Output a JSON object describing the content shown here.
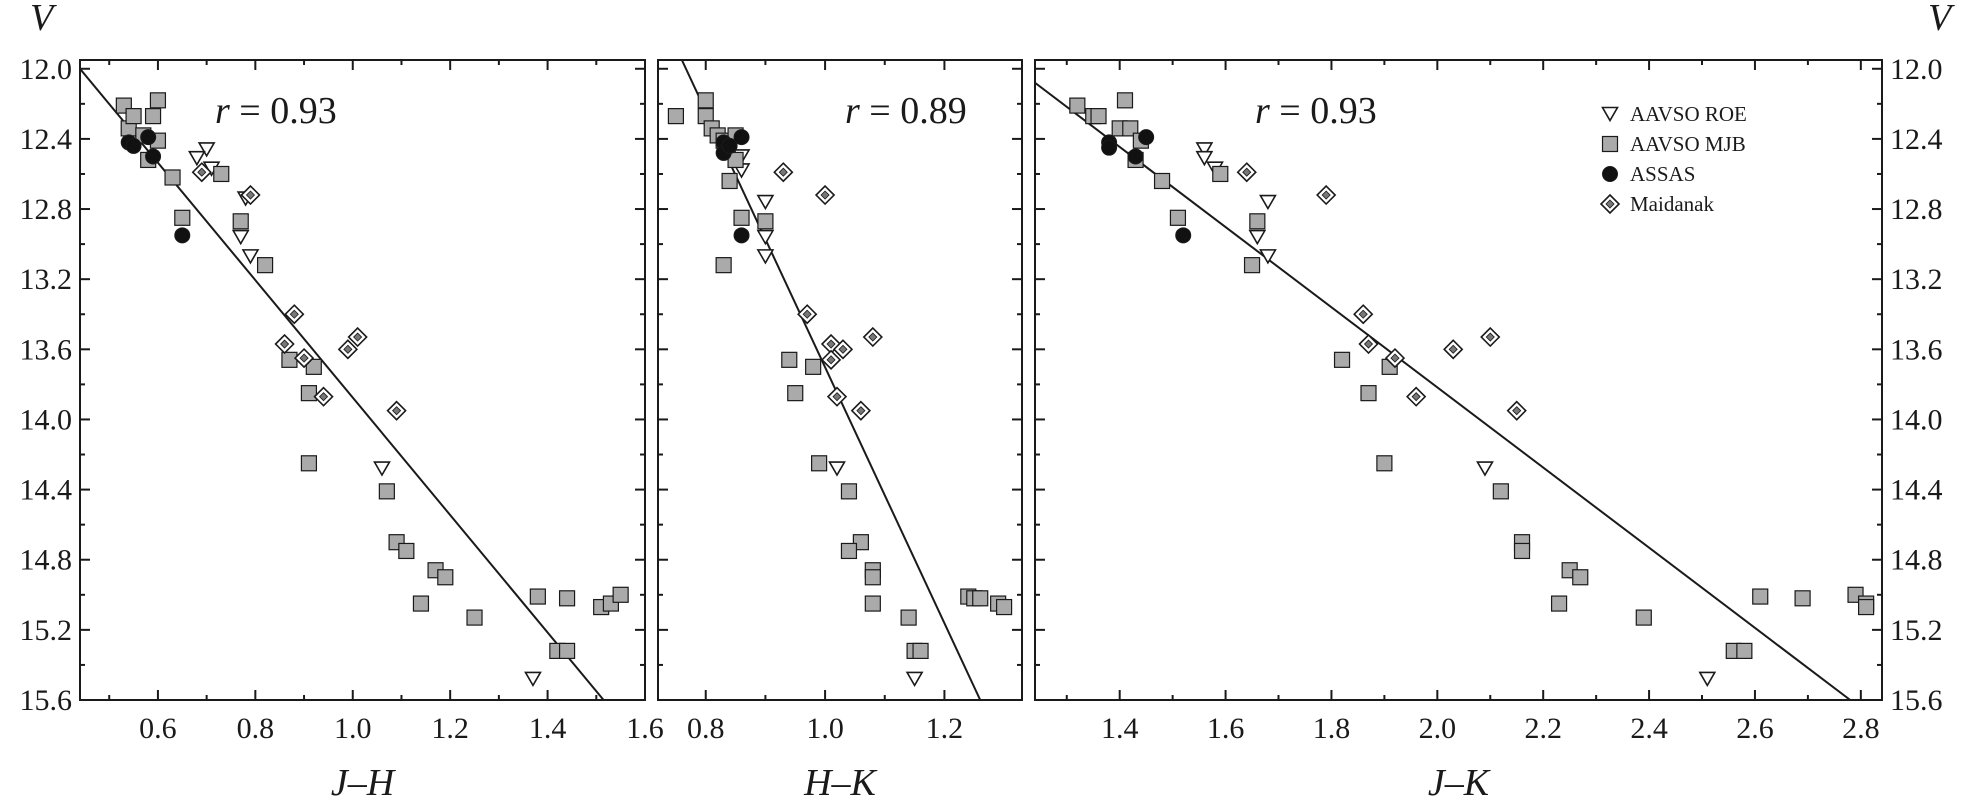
{
  "chart_data": [
    {
      "type": "scatter",
      "panel": "left",
      "xlabel": "J–H",
      "ylabel": "V",
      "xlim": [
        0.44,
        1.6
      ],
      "ylim": [
        15.6,
        11.95
      ],
      "xticks": [
        0.6,
        0.8,
        1.0,
        1.2,
        1.4,
        1.6
      ],
      "xtick_labels": [
        "0.6",
        "0.8",
        "1.0",
        "1.2",
        "1.4",
        "1.6"
      ],
      "yticks": [
        12.0,
        12.4,
        12.8,
        13.2,
        13.6,
        14.0,
        14.4,
        14.8,
        15.2,
        15.6
      ],
      "ytick_labels": [
        "12.0",
        "12.4",
        "12.8",
        "13.2",
        "13.6",
        "14.0",
        "14.4",
        "14.8",
        "15.2",
        "15.6"
      ],
      "annotation": {
        "var": "r",
        "eq": " = ",
        "val": "0.93"
      },
      "fit_line": [
        [
          0.44,
          12.0
        ],
        [
          1.515,
          15.6
        ]
      ],
      "series": [
        {
          "name": "AAVSO ROE",
          "marker": "triangle-down",
          "points": [
            [
              0.7,
              12.46
            ],
            [
              0.68,
              12.51
            ],
            [
              0.71,
              12.57
            ],
            [
              0.77,
              12.96
            ],
            [
              0.79,
              13.07
            ],
            [
              0.78,
              12.74
            ],
            [
              1.06,
              14.28
            ],
            [
              1.37,
              15.48
            ]
          ]
        },
        {
          "name": "AAVSO MJB",
          "marker": "square",
          "points": [
            [
              0.53,
              12.21
            ],
            [
              0.54,
              12.34
            ],
            [
              0.55,
              12.27
            ],
            [
              0.57,
              12.38
            ],
            [
              0.59,
              12.27
            ],
            [
              0.6,
              12.18
            ],
            [
              0.6,
              12.41
            ],
            [
              0.58,
              12.52
            ],
            [
              0.63,
              12.62
            ],
            [
              0.65,
              12.85
            ],
            [
              0.73,
              12.6
            ],
            [
              0.77,
              12.87
            ],
            [
              0.82,
              13.12
            ],
            [
              0.87,
              13.66
            ],
            [
              0.92,
              13.7
            ],
            [
              0.91,
              13.85
            ],
            [
              0.91,
              14.25
            ],
            [
              1.07,
              14.41
            ],
            [
              1.09,
              14.7
            ],
            [
              1.11,
              14.75
            ],
            [
              1.17,
              14.86
            ],
            [
              1.19,
              14.9
            ],
            [
              1.14,
              15.05
            ],
            [
              1.25,
              15.13
            ],
            [
              1.38,
              15.01
            ],
            [
              1.44,
              15.02
            ],
            [
              1.51,
              15.07
            ],
            [
              1.53,
              15.05
            ],
            [
              1.55,
              15.0
            ],
            [
              1.42,
              15.32
            ],
            [
              1.44,
              15.32
            ]
          ]
        },
        {
          "name": "ASSAS",
          "marker": "circle",
          "points": [
            [
              0.54,
              12.42
            ],
            [
              0.55,
              12.44
            ],
            [
              0.58,
              12.39
            ],
            [
              0.59,
              12.5
            ],
            [
              0.65,
              12.95
            ]
          ]
        },
        {
          "name": "Maidanak",
          "marker": "diamond",
          "points": [
            [
              0.69,
              12.59
            ],
            [
              0.79,
              12.72
            ],
            [
              0.86,
              13.57
            ],
            [
              0.88,
              13.4
            ],
            [
              0.9,
              13.65
            ],
            [
              0.94,
              13.87
            ],
            [
              0.99,
              13.6
            ],
            [
              1.01,
              13.53
            ],
            [
              1.09,
              13.95
            ]
          ]
        }
      ]
    },
    {
      "type": "scatter",
      "panel": "middle",
      "xlabel": "H–K",
      "ylabel": "V",
      "xlim": [
        0.72,
        1.33
      ],
      "ylim": [
        15.6,
        11.95
      ],
      "xticks": [
        0.8,
        1.0,
        1.2
      ],
      "xtick_labels": [
        "0.8",
        "1.0",
        "1.2"
      ],
      "yticks": [
        12.0,
        12.4,
        12.8,
        13.2,
        13.6,
        14.0,
        14.4,
        14.8,
        15.2,
        15.6
      ],
      "annotation": {
        "var": "r",
        "eq": " = ",
        "val": "0.89"
      },
      "fit_line": [
        [
          0.76,
          11.95
        ],
        [
          1.26,
          15.6
        ]
      ],
      "series": [
        {
          "name": "AAVSO ROE",
          "marker": "triangle-down",
          "points": [
            [
              0.86,
              12.5
            ],
            [
              0.86,
              12.58
            ],
            [
              0.9,
              12.76
            ],
            [
              0.9,
              12.96
            ],
            [
              0.9,
              13.07
            ],
            [
              1.02,
              14.28
            ],
            [
              1.15,
              15.48
            ]
          ]
        },
        {
          "name": "AAVSO MJB",
          "marker": "square",
          "points": [
            [
              0.75,
              12.27
            ],
            [
              0.8,
              12.18
            ],
            [
              0.8,
              12.27
            ],
            [
              0.81,
              12.34
            ],
            [
              0.82,
              12.38
            ],
            [
              0.83,
              12.41
            ],
            [
              0.85,
              12.38
            ],
            [
              0.85,
              12.52
            ],
            [
              0.84,
              12.64
            ],
            [
              0.86,
              12.85
            ],
            [
              0.9,
              12.87
            ],
            [
              0.83,
              13.12
            ],
            [
              0.94,
              13.66
            ],
            [
              0.98,
              13.7
            ],
            [
              0.95,
              13.85
            ],
            [
              0.99,
              14.25
            ],
            [
              1.04,
              14.41
            ],
            [
              1.06,
              14.7
            ],
            [
              1.04,
              14.75
            ],
            [
              1.08,
              14.86
            ],
            [
              1.08,
              14.9
            ],
            [
              1.08,
              15.05
            ],
            [
              1.14,
              15.13
            ],
            [
              1.24,
              15.01
            ],
            [
              1.25,
              15.02
            ],
            [
              1.26,
              15.02
            ],
            [
              1.29,
              15.05
            ],
            [
              1.3,
              15.07
            ],
            [
              1.15,
              15.32
            ],
            [
              1.16,
              15.32
            ]
          ]
        },
        {
          "name": "ASSAS",
          "marker": "circle",
          "points": [
            [
              0.83,
              12.42
            ],
            [
              0.83,
              12.48
            ],
            [
              0.84,
              12.44
            ],
            [
              0.86,
              12.39
            ],
            [
              0.86,
              12.95
            ]
          ]
        },
        {
          "name": "Maidanak",
          "marker": "diamond",
          "points": [
            [
              0.93,
              12.59
            ],
            [
              1.0,
              12.72
            ],
            [
              0.97,
              13.4
            ],
            [
              1.01,
              13.57
            ],
            [
              1.03,
              13.6
            ],
            [
              1.01,
              13.66
            ],
            [
              1.02,
              13.87
            ],
            [
              1.06,
              13.95
            ],
            [
              1.08,
              13.53
            ]
          ]
        }
      ]
    },
    {
      "type": "scatter",
      "panel": "right",
      "xlabel": "J–K",
      "ylabel": "V",
      "xlim": [
        1.24,
        2.84
      ],
      "ylim": [
        15.6,
        11.95
      ],
      "xticks": [
        1.4,
        1.6,
        1.8,
        2.0,
        2.2,
        2.4,
        2.6,
        2.8
      ],
      "xtick_labels": [
        "1.4",
        "1.6",
        "1.8",
        "2.0",
        "2.2",
        "2.4",
        "2.6",
        "2.8"
      ],
      "yticks": [
        12.0,
        12.4,
        12.8,
        13.2,
        13.6,
        14.0,
        14.4,
        14.8,
        15.2,
        15.6
      ],
      "ytick_labels": [
        "12.0",
        "12.4",
        "12.8",
        "13.2",
        "13.6",
        "14.0",
        "14.4",
        "14.8",
        "15.2",
        "15.6"
      ],
      "annotation": {
        "var": "r",
        "eq": " = ",
        "val": "0.93"
      },
      "fit_line": [
        [
          1.24,
          12.08
        ],
        [
          2.78,
          15.6
        ]
      ],
      "series": [
        {
          "name": "AAVSO ROE",
          "marker": "triangle-down",
          "points": [
            [
              1.56,
              12.46
            ],
            [
              1.56,
              12.51
            ],
            [
              1.58,
              12.57
            ],
            [
              1.68,
              12.76
            ],
            [
              1.66,
              12.96
            ],
            [
              1.68,
              13.07
            ],
            [
              2.09,
              14.28
            ],
            [
              2.51,
              15.48
            ]
          ]
        },
        {
          "name": "AAVSO MJB",
          "marker": "square",
          "points": [
            [
              1.32,
              12.21
            ],
            [
              1.35,
              12.27
            ],
            [
              1.36,
              12.27
            ],
            [
              1.41,
              12.18
            ],
            [
              1.4,
              12.34
            ],
            [
              1.42,
              12.34
            ],
            [
              1.44,
              12.41
            ],
            [
              1.43,
              12.52
            ],
            [
              1.48,
              12.64
            ],
            [
              1.51,
              12.85
            ],
            [
              1.59,
              12.6
            ],
            [
              1.66,
              12.87
            ],
            [
              1.65,
              13.12
            ],
            [
              1.82,
              13.66
            ],
            [
              1.91,
              13.7
            ],
            [
              1.87,
              13.85
            ],
            [
              1.9,
              14.25
            ],
            [
              2.12,
              14.41
            ],
            [
              2.16,
              14.7
            ],
            [
              2.16,
              14.75
            ],
            [
              2.25,
              14.86
            ],
            [
              2.27,
              14.9
            ],
            [
              2.23,
              15.05
            ],
            [
              2.39,
              15.13
            ],
            [
              2.61,
              15.01
            ],
            [
              2.69,
              15.02
            ],
            [
              2.79,
              15.0
            ],
            [
              2.81,
              15.05
            ],
            [
              2.81,
              15.07
            ],
            [
              2.56,
              15.32
            ],
            [
              2.58,
              15.32
            ]
          ]
        },
        {
          "name": "ASSAS",
          "marker": "circle",
          "points": [
            [
              1.38,
              12.42
            ],
            [
              1.38,
              12.45
            ],
            [
              1.45,
              12.39
            ],
            [
              1.43,
              12.5
            ],
            [
              1.52,
              12.95
            ]
          ]
        },
        {
          "name": "Maidanak",
          "marker": "diamond",
          "points": [
            [
              1.64,
              12.59
            ],
            [
              1.79,
              12.72
            ],
            [
              1.86,
              13.4
            ],
            [
              1.87,
              13.57
            ],
            [
              1.92,
              13.65
            ],
            [
              1.96,
              13.87
            ],
            [
              2.03,
              13.6
            ],
            [
              2.1,
              13.53
            ],
            [
              2.15,
              13.95
            ]
          ]
        }
      ],
      "legend": {
        "position": "top-right",
        "entries": [
          {
            "label": "AAVSO ROE",
            "marker": "triangle-down"
          },
          {
            "label": "AAVSO MJB",
            "marker": "square"
          },
          {
            "label": "ASSAS",
            "marker": "circle"
          },
          {
            "label": "Maidanak",
            "marker": "diamond"
          }
        ]
      }
    }
  ],
  "axes": {
    "left_ylabel": "V",
    "right_ylabel": "V"
  },
  "colors": {
    "ink": "#1a1a1a",
    "square_fill": "#aaaaaa",
    "circle_fill": "#111111",
    "open_fill": "#ffffff"
  }
}
